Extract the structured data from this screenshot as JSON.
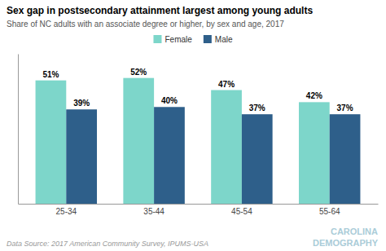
{
  "chart_data": {
    "type": "bar",
    "title": "Sex gap in postsecondary attainment largest among young adults",
    "subtitle": "Share of NC adults with an associate degree or higher, by sex and age, 2017",
    "categories": [
      "25-34",
      "35-44",
      "45-54",
      "55-64"
    ],
    "series": [
      {
        "name": "Female",
        "color": "#7dd6ca",
        "values": [
          51,
          52,
          47,
          42
        ],
        "value_labels": [
          "51%",
          "52%",
          "47%",
          "42%"
        ]
      },
      {
        "name": "Male",
        "color": "#2e5f8a",
        "values": [
          39,
          40,
          37,
          37
        ],
        "value_labels": [
          "39%",
          "40%",
          "37%",
          "37%"
        ]
      }
    ],
    "ylim": [
      0,
      62
    ],
    "data_labels": true,
    "tick_labels": "x",
    "legend": "top",
    "annotations": [
      {
        "text": "Data Source: 2017 American Community Survey, IPUMS-USA"
      },
      {
        "text": "CAROLINA",
        "color": "#aaccd8"
      },
      {
        "text": "DEMOGRAPHY",
        "color": "#aaccd8"
      }
    ]
  }
}
